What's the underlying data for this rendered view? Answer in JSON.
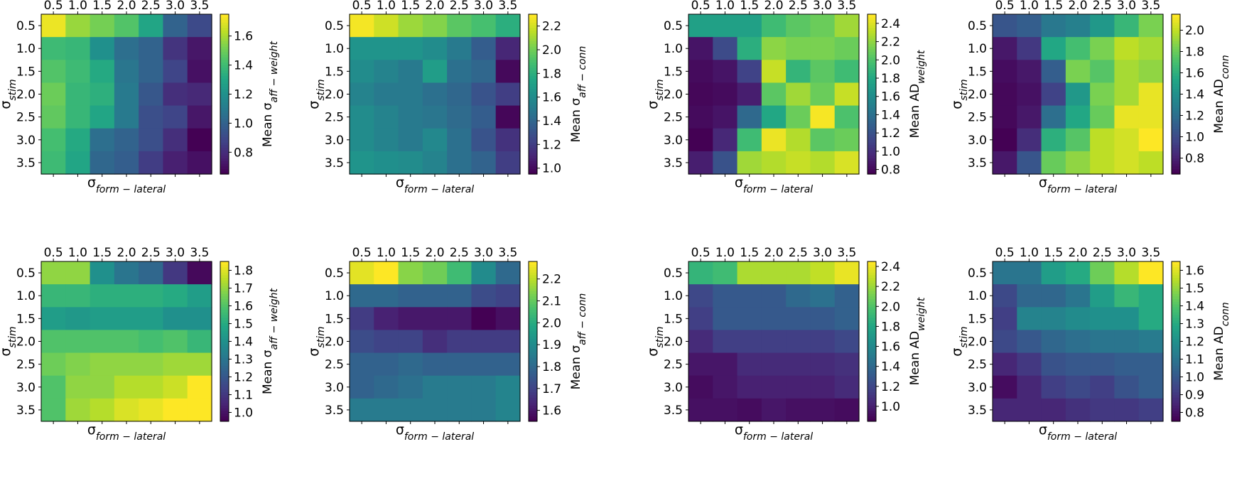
{
  "colormap": "viridis",
  "tick_labels": [
    "0.5",
    "1.0",
    "1.5",
    "2.0",
    "2.5",
    "3.0",
    "3.5"
  ],
  "chart_data": [
    {
      "type": "heatmap",
      "xlabel": {
        "main": "σ",
        "sub": "form − lateral"
      },
      "ylabel": {
        "main": "σ",
        "sub": "stim"
      },
      "colorbar_label": {
        "main": "Mean σ",
        "sub": "aff − weight"
      },
      "x": [
        0.5,
        1.0,
        1.5,
        2.0,
        2.5,
        3.0,
        3.5
      ],
      "y": [
        0.5,
        1.0,
        1.5,
        2.0,
        2.5,
        3.0,
        3.5
      ],
      "vmin": 0.65,
      "vmax": 1.75,
      "colorbar_ticks": [
        "0.8",
        "1.0",
        "1.2",
        "1.4",
        "1.6"
      ],
      "values": [
        [
          1.72,
          1.58,
          1.52,
          1.45,
          1.3,
          1.0,
          0.9
        ],
        [
          1.4,
          1.38,
          1.2,
          1.05,
          1.0,
          0.82,
          0.72
        ],
        [
          1.45,
          1.4,
          1.32,
          1.08,
          1.0,
          0.88,
          0.7
        ],
        [
          1.5,
          1.38,
          1.35,
          1.1,
          0.95,
          0.8,
          0.78
        ],
        [
          1.48,
          1.38,
          1.3,
          1.1,
          0.92,
          0.88,
          0.72
        ],
        [
          1.42,
          1.32,
          1.05,
          1.0,
          0.92,
          0.8,
          0.65
        ],
        [
          1.4,
          1.3,
          1.02,
          0.98,
          0.85,
          0.75,
          0.7
        ]
      ]
    },
    {
      "type": "heatmap",
      "xlabel": {
        "main": "σ",
        "sub": "form − lateral"
      },
      "ylabel": {
        "main": "σ",
        "sub": "stim"
      },
      "colorbar_label": {
        "main": "Mean σ",
        "sub": "aff − conn"
      },
      "x": [
        0.5,
        1.0,
        1.5,
        2.0,
        2.5,
        3.0,
        3.5
      ],
      "y": [
        0.5,
        1.0,
        1.5,
        2.0,
        2.5,
        3.0,
        3.5
      ],
      "vmin": 0.95,
      "vmax": 2.3,
      "colorbar_ticks": [
        "1.0",
        "1.2",
        "1.4",
        "1.6",
        "1.8",
        "2.0",
        "2.2"
      ],
      "values": [
        [
          2.28,
          2.2,
          2.1,
          2.05,
          1.95,
          1.9,
          1.8
        ],
        [
          1.65,
          1.65,
          1.65,
          1.6,
          1.5,
          1.35,
          1.1
        ],
        [
          1.6,
          1.55,
          1.5,
          1.7,
          1.45,
          1.4,
          0.98
        ],
        [
          1.55,
          1.5,
          1.5,
          1.45,
          1.4,
          1.3,
          1.2
        ],
        [
          1.6,
          1.55,
          1.5,
          1.48,
          1.42,
          1.35,
          0.97
        ],
        [
          1.6,
          1.55,
          1.5,
          1.58,
          1.45,
          1.3,
          1.15
        ],
        [
          1.65,
          1.62,
          1.6,
          1.55,
          1.45,
          1.38,
          1.2
        ]
      ]
    },
    {
      "type": "heatmap",
      "xlabel": {
        "main": "σ",
        "sub": "form − lateral"
      },
      "ylabel": {
        "main": "σ",
        "sub": "stim"
      },
      "colorbar_label": {
        "main": "Mean AD",
        "sub": "weight"
      },
      "x": [
        0.5,
        1.0,
        1.5,
        2.0,
        2.5,
        3.0,
        3.5
      ],
      "y": [
        0.5,
        1.0,
        1.5,
        2.0,
        2.5,
        3.0,
        3.5
      ],
      "vmin": 0.75,
      "vmax": 2.5,
      "colorbar_ticks": [
        "0.8",
        "1.0",
        "1.2",
        "1.4",
        "1.6",
        "1.8",
        "2.0",
        "2.2",
        "2.4"
      ],
      "values": [
        [
          1.75,
          1.75,
          1.75,
          1.95,
          2.05,
          2.1,
          2.25
        ],
        [
          0.85,
          1.15,
          1.85,
          2.2,
          2.15,
          2.15,
          2.1
        ],
        [
          0.8,
          0.85,
          1.1,
          2.35,
          1.9,
          2.05,
          1.95
        ],
        [
          0.78,
          0.8,
          0.9,
          2.05,
          2.25,
          2.1,
          2.35
        ],
        [
          0.8,
          0.85,
          1.35,
          1.8,
          2.1,
          2.48,
          2.0
        ],
        [
          0.75,
          0.95,
          1.95,
          2.45,
          2.3,
          2.05,
          2.1
        ],
        [
          0.9,
          1.2,
          2.25,
          2.3,
          2.35,
          2.3,
          2.4
        ]
      ]
    },
    {
      "type": "heatmap",
      "xlabel": {
        "main": "σ",
        "sub": "form − lateral"
      },
      "ylabel": {
        "main": "σ",
        "sub": "stim"
      },
      "colorbar_label": {
        "main": "Mean AD",
        "sub": "conn"
      },
      "x": [
        0.5,
        1.0,
        1.5,
        2.0,
        2.5,
        3.0,
        3.5
      ],
      "y": [
        0.5,
        1.0,
        1.5,
        2.0,
        2.5,
        3.0,
        3.5
      ],
      "vmin": 0.65,
      "vmax": 2.15,
      "colorbar_ticks": [
        "0.8",
        "1.0",
        "1.2",
        "1.4",
        "1.6",
        "1.8",
        "2.0"
      ],
      "values": [
        [
          1.05,
          1.1,
          1.25,
          1.3,
          1.45,
          1.65,
          1.85
        ],
        [
          0.75,
          0.9,
          1.55,
          1.7,
          1.85,
          2.0,
          1.95
        ],
        [
          0.7,
          0.75,
          1.1,
          1.85,
          1.75,
          1.95,
          1.9
        ],
        [
          0.68,
          0.72,
          0.95,
          1.45,
          1.85,
          1.95,
          2.1
        ],
        [
          0.68,
          0.75,
          1.2,
          1.55,
          1.8,
          2.1,
          2.1
        ],
        [
          0.65,
          0.85,
          1.6,
          1.75,
          2.0,
          2.05,
          2.15
        ],
        [
          0.75,
          1.05,
          1.8,
          1.9,
          2.0,
          2.05,
          2.0
        ]
      ]
    },
    {
      "type": "heatmap",
      "xlabel": {
        "main": "σ",
        "sub": "form − lateral"
      },
      "ylabel": {
        "main": "σ",
        "sub": "stim"
      },
      "colorbar_label": {
        "main": "Mean σ",
        "sub": "aff − weight"
      },
      "x": [
        0.5,
        1.0,
        1.5,
        2.0,
        2.5,
        3.0,
        3.5
      ],
      "y": [
        0.5,
        1.0,
        1.5,
        2.0,
        2.5,
        3.0,
        3.5
      ],
      "vmin": 0.95,
      "vmax": 1.85,
      "colorbar_ticks": [
        "1.0",
        "1.1",
        "1.2",
        "1.3",
        "1.4",
        "1.5",
        "1.6",
        "1.7",
        "1.8"
      ],
      "values": [
        [
          1.7,
          1.7,
          1.4,
          1.3,
          1.25,
          1.1,
          0.97
        ],
        [
          1.55,
          1.55,
          1.52,
          1.52,
          1.52,
          1.5,
          1.45
        ],
        [
          1.45,
          1.43,
          1.45,
          1.45,
          1.45,
          1.4,
          1.4
        ],
        [
          1.6,
          1.6,
          1.6,
          1.6,
          1.58,
          1.6,
          1.55
        ],
        [
          1.65,
          1.68,
          1.7,
          1.7,
          1.7,
          1.72,
          1.72
        ],
        [
          1.6,
          1.7,
          1.7,
          1.75,
          1.75,
          1.78,
          1.85
        ],
        [
          1.6,
          1.72,
          1.75,
          1.8,
          1.82,
          1.85,
          1.85
        ]
      ]
    },
    {
      "type": "heatmap",
      "xlabel": {
        "main": "σ",
        "sub": "form − lateral"
      },
      "ylabel": {
        "main": "σ",
        "sub": "stim"
      },
      "colorbar_label": {
        "main": "Mean σ",
        "sub": "aff − conn"
      },
      "x": [
        0.5,
        1.0,
        1.5,
        2.0,
        2.5,
        3.0,
        3.5
      ],
      "y": [
        0.5,
        1.0,
        1.5,
        2.0,
        2.5,
        3.0,
        3.5
      ],
      "vmin": 1.55,
      "vmax": 2.28,
      "colorbar_ticks": [
        "1.6",
        "1.7",
        "1.8",
        "1.9",
        "2.0",
        "2.1",
        "2.2"
      ],
      "values": [
        [
          2.25,
          2.28,
          2.15,
          2.12,
          2.05,
          1.9,
          1.8
        ],
        [
          1.8,
          1.8,
          1.78,
          1.78,
          1.78,
          1.72,
          1.7
        ],
        [
          1.68,
          1.62,
          1.6,
          1.6,
          1.6,
          1.55,
          1.58
        ],
        [
          1.72,
          1.7,
          1.7,
          1.65,
          1.68,
          1.68,
          1.68
        ],
        [
          1.78,
          1.78,
          1.8,
          1.78,
          1.78,
          1.78,
          1.78
        ],
        [
          1.78,
          1.8,
          1.82,
          1.85,
          1.85,
          1.85,
          1.88
        ],
        [
          1.85,
          1.85,
          1.85,
          1.85,
          1.85,
          1.85,
          1.88
        ]
      ]
    },
    {
      "type": "heatmap",
      "xlabel": {
        "main": "σ",
        "sub": "form − lateral"
      },
      "ylabel": {
        "main": "σ",
        "sub": "stim"
      },
      "colorbar_label": {
        "main": "Mean AD",
        "sub": "weight"
      },
      "x": [
        0.5,
        1.0,
        1.5,
        2.0,
        2.5,
        3.0,
        3.5
      ],
      "y": [
        0.5,
        1.0,
        1.5,
        2.0,
        2.5,
        3.0,
        3.5
      ],
      "vmin": 0.85,
      "vmax": 2.45,
      "colorbar_ticks": [
        "1.0",
        "1.2",
        "1.4",
        "1.6",
        "1.8",
        "2.0",
        "2.2",
        "2.4"
      ],
      "values": [
        [
          1.9,
          1.95,
          2.25,
          2.25,
          2.25,
          2.3,
          2.4
        ],
        [
          1.2,
          1.3,
          1.3,
          1.3,
          1.4,
          1.45,
          1.35
        ],
        [
          1.15,
          1.3,
          1.3,
          1.3,
          1.3,
          1.3,
          1.35
        ],
        [
          1.05,
          1.15,
          1.15,
          1.15,
          1.15,
          1.15,
          1.2
        ],
        [
          0.95,
          0.95,
          1.05,
          1.05,
          1.05,
          1.05,
          1.08
        ],
        [
          0.9,
          0.95,
          1.0,
          1.0,
          1.0,
          1.0,
          1.05
        ],
        [
          0.92,
          0.92,
          0.9,
          0.95,
          0.92,
          0.92,
          0.9
        ]
      ]
    },
    {
      "type": "heatmap",
      "xlabel": {
        "main": "σ",
        "sub": "form − lateral"
      },
      "ylabel": {
        "main": "σ",
        "sub": "stim"
      },
      "colorbar_label": {
        "main": "Mean AD",
        "sub": "conn"
      },
      "x": [
        0.5,
        1.0,
        1.5,
        2.0,
        2.5,
        3.0,
        3.5
      ],
      "y": [
        0.5,
        1.0,
        1.5,
        2.0,
        2.5,
        3.0,
        3.5
      ],
      "vmin": 0.75,
      "vmax": 1.65,
      "colorbar_ticks": [
        "0.8",
        "0.9",
        "1.0",
        "1.1",
        "1.2",
        "1.3",
        "1.4",
        "1.5",
        "1.6"
      ],
      "values": [
        [
          1.1,
          1.1,
          1.25,
          1.3,
          1.45,
          1.55,
          1.65
        ],
        [
          0.95,
          1.05,
          1.05,
          1.1,
          1.25,
          1.35,
          1.3
        ],
        [
          0.92,
          1.15,
          1.15,
          1.18,
          1.2,
          1.2,
          1.3
        ],
        [
          0.95,
          1.0,
          1.05,
          1.08,
          1.1,
          1.1,
          1.12
        ],
        [
          0.85,
          0.9,
          0.98,
          1.0,
          1.0,
          1.02,
          1.02
        ],
        [
          0.78,
          0.85,
          0.92,
          0.95,
          0.92,
          0.98,
          1.02
        ],
        [
          0.85,
          0.85,
          0.85,
          0.88,
          0.9,
          0.9,
          0.92
        ]
      ]
    }
  ]
}
